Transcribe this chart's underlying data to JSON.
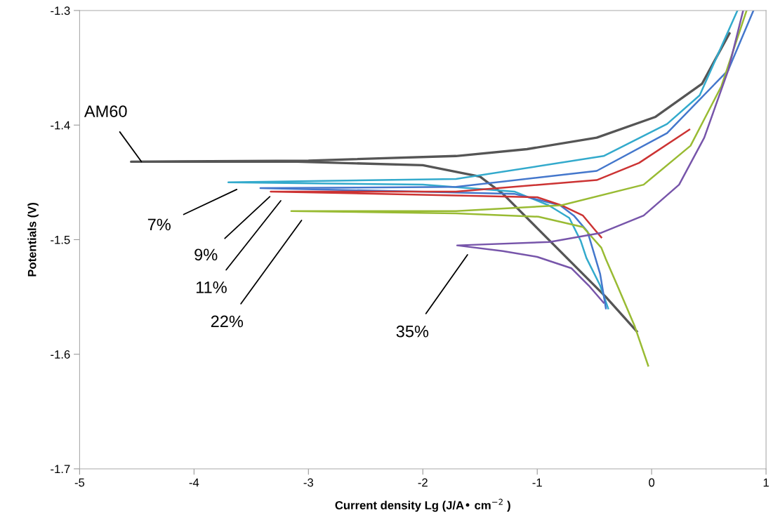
{
  "chart_data": {
    "type": "line",
    "xlabel": "Current density Lg (J/A• cm$^{−2}$ )",
    "ylabel": "Potentials (V)",
    "xlim": [
      -5,
      1
    ],
    "ylim": [
      -1.7,
      -1.3
    ],
    "xticks": [
      {
        "value": -5,
        "label": "-5"
      },
      {
        "value": -4,
        "label": "-4"
      },
      {
        "value": -3,
        "label": "-3"
      },
      {
        "value": -2,
        "label": "-2"
      },
      {
        "value": -1,
        "label": "-1"
      },
      0,
      1
    ],
    "yticks": [
      {
        "value": -1.7,
        "label": "-1.7"
      },
      {
        "value": -1.6,
        "label": "-1.6"
      },
      {
        "value": -1.5,
        "label": "-1.5"
      },
      {
        "value": -1.4,
        "label": "-1.4"
      },
      {
        "value": -1.3,
        "label": "-1.3"
      }
    ],
    "grid": false,
    "legend": false,
    "marker": "none",
    "line_style": "solid",
    "series": [
      {
        "name": "AM60",
        "color": "#555555",
        "x": [
          -0.13,
          -0.4,
          -0.7,
          -1.0,
          -1.3,
          -1.5,
          -2.0,
          -3.1,
          -4.55,
          -3.0,
          -1.71,
          -1.09,
          -0.48,
          0.03,
          0.44,
          0.68
        ],
        "values": [
          -1.58,
          -1.55,
          -1.52,
          -1.49,
          -1.46,
          -1.445,
          -1.435,
          -1.432,
          -1.432,
          -1.431,
          -1.427,
          -1.421,
          -1.411,
          -1.393,
          -1.364,
          -1.32
        ]
      },
      {
        "name": "7%",
        "color": "#33aacc",
        "x": [
          -0.38,
          -0.45,
          -0.57,
          -0.62,
          -0.72,
          -0.9,
          -1.2,
          -2.0,
          -3.7,
          -1.71,
          -0.42,
          0.135,
          0.42,
          0.75
        ],
        "values": [
          -1.56,
          -1.54,
          -1.516,
          -1.501,
          -1.481,
          -1.47,
          -1.458,
          -1.452,
          -1.45,
          -1.447,
          -1.427,
          -1.399,
          -1.374,
          -1.3
        ]
      },
      {
        "name": "9%",
        "color": "#4477cc",
        "x": [
          -0.4,
          -0.45,
          -0.56,
          -0.68,
          -0.8,
          -1.2,
          -3.42,
          -1.71,
          -0.48,
          0.135,
          0.67,
          0.89
        ],
        "values": [
          -1.56,
          -1.53,
          -1.493,
          -1.479,
          -1.47,
          -1.46,
          -1.455,
          -1.454,
          -1.44,
          -1.407,
          -1.352,
          -1.3
        ]
      },
      {
        "name": "11%",
        "color": "#cc3333",
        "x": [
          -0.44,
          -0.5,
          -0.6,
          -0.79,
          -1.0,
          -3.33,
          -1.71,
          -0.48,
          -0.11,
          0.33
        ],
        "values": [
          -1.498,
          -1.491,
          -1.479,
          -1.47,
          -1.463,
          -1.458,
          -1.458,
          -1.448,
          -1.433,
          -1.404
        ]
      },
      {
        "name": "22%",
        "color": "#99bb33",
        "x": [
          -0.03,
          -0.15,
          -0.3,
          -0.4,
          -0.44,
          -0.6,
          -0.99,
          -1.71,
          -3.15,
          -1.71,
          -0.79,
          -0.07,
          0.34,
          0.61,
          0.83
        ],
        "values": [
          -1.61,
          -1.575,
          -1.54,
          -1.517,
          -1.507,
          -1.489,
          -1.48,
          -1.477,
          -1.475,
          -1.475,
          -1.47,
          -1.452,
          -1.418,
          -1.366,
          -1.3
        ]
      },
      {
        "name": "35%",
        "color": "#7755aa",
        "x": [
          -0.42,
          -0.55,
          -0.7,
          -1.0,
          -1.3,
          -1.7,
          -0.89,
          -0.44,
          -0.07,
          0.24,
          0.46,
          0.67,
          0.8
        ],
        "values": [
          -1.555,
          -1.54,
          -1.525,
          -1.515,
          -1.51,
          -1.505,
          -1.502,
          -1.494,
          -1.479,
          -1.452,
          -1.411,
          -1.352,
          -1.3
        ]
      }
    ]
  }
}
